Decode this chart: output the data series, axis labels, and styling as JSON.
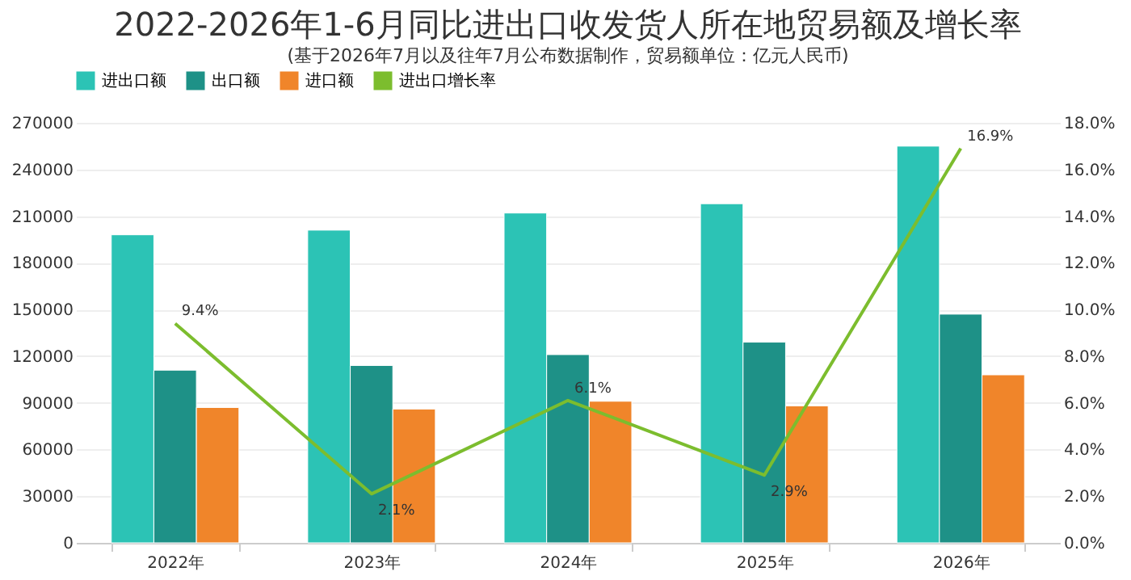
{
  "chart_data": {
    "type": "bar",
    "title": "2022-2026年1-6月同比进出口收发货人所在地贸易额及增长率",
    "subtitle": "(基于2026年7月以及往年7月公布数据制作，贸易额单位：亿元人民币)",
    "categories": [
      "2022年",
      "2023年",
      "2024年",
      "2025年",
      "2026年"
    ],
    "series": [
      {
        "name": "进出口额",
        "color": "#2cc3b5",
        "values": [
          198000,
          201000,
          212000,
          218000,
          255000
        ]
      },
      {
        "name": "出口额",
        "color": "#1e9187",
        "values": [
          111000,
          114000,
          121000,
          129000,
          147000
        ]
      },
      {
        "name": "进口额",
        "color": "#f0852a",
        "values": [
          87000,
          86000,
          91000,
          88000,
          108000
        ]
      },
      {
        "name": "进出口增长率",
        "color": "#7cbd2e",
        "type": "line",
        "axis": "y2",
        "values": [
          9.4,
          2.1,
          6.1,
          2.9,
          16.9
        ],
        "value_labels": [
          "9.4%",
          "2.1%",
          "6.1%",
          "2.9%",
          "16.9%"
        ]
      }
    ],
    "ylim": [
      0,
      270000
    ],
    "yticks": [
      0,
      30000,
      60000,
      90000,
      120000,
      150000,
      180000,
      210000,
      240000,
      270000
    ],
    "y2lim": [
      0,
      18
    ],
    "y2ticks": [
      {
        "value": 0,
        "label": "0.0%"
      },
      {
        "value": 2,
        "label": "2.0%"
      },
      {
        "value": 4,
        "label": "4.0%"
      },
      {
        "value": 6,
        "label": "6.0%"
      },
      {
        "value": 8,
        "label": "8.0%"
      },
      {
        "value": 10,
        "label": "10.0%"
      },
      {
        "value": 12,
        "label": "12.0%"
      },
      {
        "value": 14,
        "label": "14.0%"
      },
      {
        "value": 16,
        "label": "16.0%"
      },
      {
        "value": 18,
        "label": "18.0%"
      }
    ],
    "grid": "y",
    "legend": "top",
    "marker": "none",
    "line_style": "solid"
  }
}
